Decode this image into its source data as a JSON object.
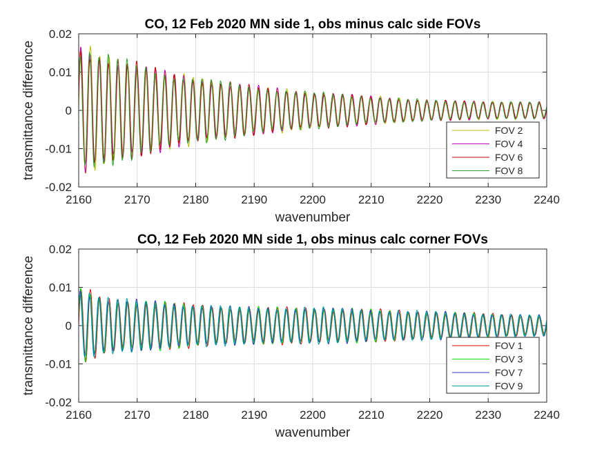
{
  "chart_data": [
    {
      "type": "line",
      "title": "CO, 12 Feb 2020 MN side 1, obs minus calc side FOVs",
      "xlabel": "wavenumber",
      "ylabel": "transmittance difference",
      "xlim": [
        2160,
        2240
      ],
      "ylim": [
        -0.02,
        0.02
      ],
      "xticks": [
        "2160",
        "2170",
        "2180",
        "2190",
        "2200",
        "2210",
        "2220",
        "2230",
        "2240"
      ],
      "yticks": [
        "0.02",
        "0.01",
        "0",
        "-0.01",
        "-0.02"
      ],
      "grid": true,
      "legend_position": "bottom-right",
      "oscillation_period": 1.6,
      "envelope_x": [
        2160,
        2165,
        2170,
        2175,
        2180,
        2185,
        2190,
        2200,
        2210,
        2220,
        2230,
        2240
      ],
      "envelope_amp": [
        0.016,
        0.0135,
        0.0115,
        0.0095,
        0.0082,
        0.007,
        0.006,
        0.0045,
        0.0035,
        0.0025,
        0.0022,
        0.002
      ],
      "series": [
        {
          "name": "FOV 2",
          "color": "#bfbf00",
          "phase": 0.0
        },
        {
          "name": "FOV 4",
          "color": "#bf00bf",
          "phase": 0.06
        },
        {
          "name": "FOV 6",
          "color": "#c00000",
          "phase": 0.12
        },
        {
          "name": "FOV 8",
          "color": "#2ca02c",
          "phase": 0.18
        }
      ]
    },
    {
      "type": "line",
      "title": "CO, 12 Feb 2020 MN side 1, obs minus calc corner FOVs",
      "xlabel": "wavenumber",
      "ylabel": "transmittance difference",
      "xlim": [
        2160,
        2240
      ],
      "ylim": [
        -0.02,
        0.02
      ],
      "xticks": [
        "2160",
        "2170",
        "2180",
        "2190",
        "2200",
        "2210",
        "2220",
        "2230",
        "2240"
      ],
      "yticks": [
        "0.02",
        "0.01",
        "0",
        "-0.01",
        "-0.02"
      ],
      "grid": true,
      "legend_position": "bottom-right",
      "oscillation_period": 1.6,
      "envelope_x": [
        2160,
        2165,
        2170,
        2175,
        2180,
        2185,
        2190,
        2200,
        2210,
        2220,
        2230,
        2240
      ],
      "envelope_amp": [
        0.0095,
        0.0068,
        0.0062,
        0.0058,
        0.0052,
        0.0048,
        0.0045,
        0.0045,
        0.004,
        0.0035,
        0.003,
        0.0025
      ],
      "series": [
        {
          "name": "FOV 1",
          "color": "#e00000",
          "phase": 0.0
        },
        {
          "name": "FOV 3",
          "color": "#00e000",
          "phase": 0.07
        },
        {
          "name": "FOV 7",
          "color": "#3030c0",
          "phase": 0.14
        },
        {
          "name": "FOV 9",
          "color": "#00a0a0",
          "phase": 0.21
        }
      ]
    }
  ]
}
